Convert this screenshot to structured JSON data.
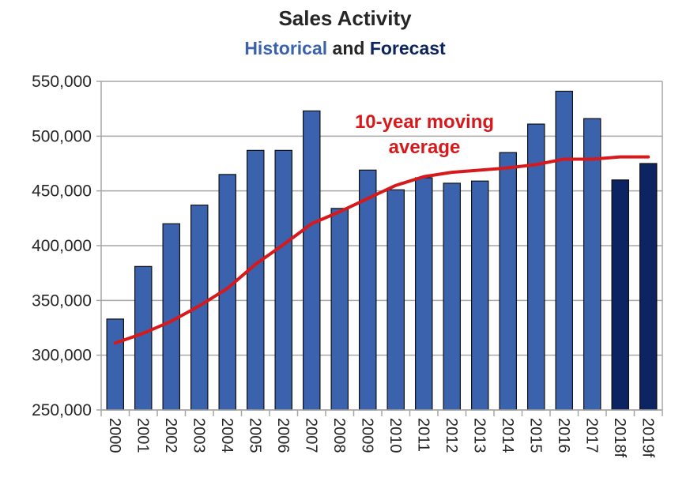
{
  "chart_data": {
    "type": "bar",
    "title": "Sales Activity",
    "subtitle_parts": [
      {
        "text": "Historical",
        "color": "#3a62ad"
      },
      {
        "text": "and",
        "color": "#262626"
      },
      {
        "text": "Forecast",
        "color": "#0c2461"
      }
    ],
    "categories": [
      "2000",
      "2001",
      "2002",
      "2003",
      "2004",
      "2005",
      "2006",
      "2007",
      "2008",
      "2009",
      "2010",
      "2011",
      "2012",
      "2013",
      "2014",
      "2015",
      "2016",
      "2017",
      "2018f",
      "2019f"
    ],
    "series": [
      {
        "values": [
          333000,
          381000,
          420000,
          437000,
          465000,
          487000,
          487000,
          523000,
          434000,
          469000,
          451000,
          462000,
          457000,
          459000,
          485000,
          511000,
          541000,
          516000,
          460000,
          475000
        ],
        "colors": [
          "#3a62ad",
          "#3a62ad",
          "#3a62ad",
          "#3a62ad",
          "#3a62ad",
          "#3a62ad",
          "#3a62ad",
          "#3a62ad",
          "#3a62ad",
          "#3a62ad",
          "#3a62ad",
          "#3a62ad",
          "#3a62ad",
          "#3a62ad",
          "#3a62ad",
          "#3a62ad",
          "#3a62ad",
          "#3a62ad",
          "#0c2461",
          "#0c2461"
        ]
      },
      {
        "name": "10-year moving average",
        "type": "line",
        "color": "#d7191c",
        "values": [
          311000,
          320000,
          331000,
          345000,
          361000,
          383000,
          401000,
          420000,
          431000,
          443000,
          455000,
          463000,
          467000,
          469000,
          471000,
          474000,
          479000,
          479000,
          481000,
          481000
        ]
      }
    ],
    "ylim": [
      250000,
      550000
    ],
    "yticks": [
      "250,000",
      "300,000",
      "350,000",
      "400,000",
      "450,000",
      "500,000",
      "550,000"
    ],
    "ytick_values": [
      250000,
      300000,
      350000,
      400000,
      450000,
      500000,
      550000
    ],
    "annotation_lines": [
      "10-year moving",
      "average"
    ],
    "grid": true
  }
}
